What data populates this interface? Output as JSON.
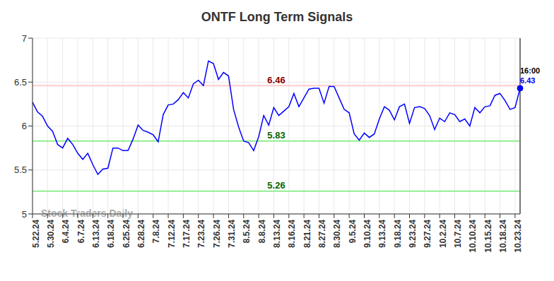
{
  "chart_data": {
    "type": "line",
    "title": "ONTF Long Term Signals",
    "categories": [
      "5.22.24",
      null,
      null,
      "5.30.24",
      null,
      null,
      "6.4.24",
      null,
      null,
      "6.7.24",
      null,
      null,
      "6.13.24",
      null,
      null,
      "6.18.24",
      null,
      null,
      "6.25.24",
      null,
      null,
      "6.28.24",
      null,
      null,
      "7.8.24",
      null,
      null,
      "7.12.24",
      null,
      null,
      "7.17.24",
      null,
      null,
      "7.23.24",
      null,
      null,
      "7.26.24",
      null,
      null,
      "7.31.24",
      null,
      null,
      "8.5.24",
      null,
      null,
      "8.8.24",
      null,
      null,
      "8.13.24",
      null,
      null,
      "8.16.24",
      null,
      null,
      "8.21.24",
      null,
      null,
      "8.27.24",
      null,
      null,
      "8.30.24",
      null,
      null,
      "9.5.24",
      null,
      null,
      "9.10.24",
      null,
      null,
      "9.13.24",
      null,
      null,
      "9.18.24",
      null,
      null,
      "9.23.24",
      null,
      null,
      "9.27.24",
      null,
      null,
      "10.2.24",
      null,
      null,
      "10.7.24",
      null,
      null,
      "10.10.24",
      null,
      null,
      "10.15.24",
      null,
      null,
      "10.18.24",
      null,
      null,
      "10.23.24",
      null
    ],
    "values": [
      6.27,
      6.16,
      6.11,
      6.0,
      5.94,
      5.79,
      5.75,
      5.86,
      5.79,
      5.69,
      5.62,
      5.69,
      5.56,
      5.45,
      5.51,
      5.52,
      5.75,
      5.75,
      5.72,
      5.72,
      5.85,
      6.01,
      5.95,
      5.93,
      5.9,
      5.82,
      6.13,
      6.24,
      6.25,
      6.3,
      6.38,
      6.32,
      6.48,
      6.52,
      6.46,
      6.74,
      6.71,
      6.53,
      6.61,
      6.57,
      6.19,
      5.99,
      5.83,
      5.81,
      5.72,
      5.88,
      6.12,
      6.01,
      6.21,
      6.12,
      6.17,
      6.22,
      6.37,
      6.22,
      6.32,
      6.42,
      6.43,
      6.43,
      6.26,
      6.45,
      6.45,
      6.32,
      6.19,
      6.15,
      5.91,
      5.84,
      5.92,
      5.87,
      5.91,
      6.08,
      6.22,
      6.18,
      6.07,
      6.22,
      6.25,
      6.03,
      6.21,
      6.22,
      6.2,
      6.12,
      5.96,
      6.09,
      6.05,
      6.15,
      6.13,
      6.05,
      6.08,
      6.0,
      6.21,
      6.15,
      6.22,
      6.23,
      6.35,
      6.37,
      6.29,
      6.19,
      6.21,
      6.43
    ],
    "color": "#0000ff",
    "ylim": [
      5,
      7
    ],
    "yticks": [
      5,
      5.5,
      6,
      6.5,
      7
    ],
    "grid": true,
    "horizontal_lines": [
      {
        "value": 6.46,
        "label": "6.46",
        "color": "#ffcccc",
        "label_color": "#8b0000"
      },
      {
        "value": 5.83,
        "label": "5.83",
        "color": "#90ee90",
        "label_color": "#006400"
      },
      {
        "value": 5.26,
        "label": "5.26",
        "color": "#90ee90",
        "label_color": "#006400"
      }
    ],
    "last_point_time": "16:00",
    "watermark": "Stock Traders Daily"
  }
}
